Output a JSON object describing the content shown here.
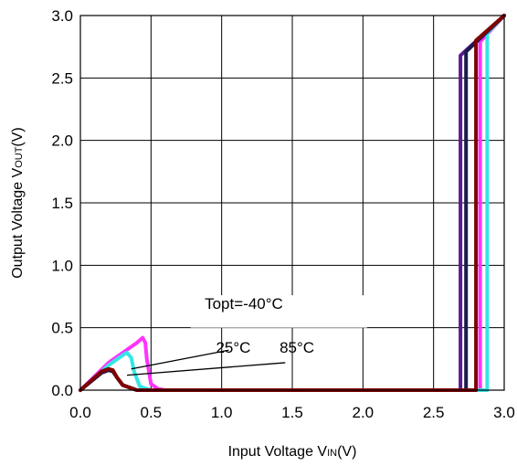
{
  "chart_data": {
    "type": "line",
    "title": "",
    "xlabel": {
      "main": "Input Voltage V",
      "sub": "IN",
      "unit": "(V)"
    },
    "ylabel": {
      "main": "Output Voltage V",
      "sub": "OUT",
      "unit": "(V)"
    },
    "xlim": [
      0.0,
      3.0
    ],
    "ylim": [
      0.0,
      3.0
    ],
    "xticks": [
      0.0,
      0.5,
      1.0,
      1.5,
      2.0,
      2.5,
      3.0
    ],
    "yticks": [
      0.0,
      0.5,
      1.0,
      1.5,
      2.0,
      2.5,
      3.0
    ],
    "xtick_labels": [
      "0.0",
      "0.5",
      "1.0",
      "1.5",
      "2.0",
      "2.5",
      "3.0"
    ],
    "ytick_labels": [
      "0.0",
      "0.5",
      "1.0",
      "1.5",
      "2.0",
      "2.5",
      "3.0"
    ],
    "grid": true,
    "legend": "none",
    "annotations": [
      {
        "text": "Topt=-40°C",
        "x": 0.88,
        "y": 0.65
      },
      {
        "text": "25°C",
        "x": 0.96,
        "y": 0.3
      },
      {
        "text": "85°C",
        "x": 1.41,
        "y": 0.3
      }
    ],
    "series": [
      {
        "color": "#ff33ff",
        "x": [
          0.0,
          0.2,
          0.4,
          0.44,
          0.46,
          0.47,
          0.5,
          0.55,
          0.6,
          2.83,
          2.83,
          3.0
        ],
        "y": [
          0.0,
          0.22,
          0.38,
          0.42,
          0.38,
          0.25,
          0.05,
          0.01,
          0.0,
          0.0,
          2.79,
          3.0
        ]
      },
      {
        "color": "#33e6e6",
        "x": [
          0.0,
          0.2,
          0.3,
          0.33,
          0.36,
          0.38,
          0.42,
          0.5,
          2.88,
          2.88,
          3.0
        ],
        "y": [
          0.0,
          0.2,
          0.28,
          0.3,
          0.26,
          0.15,
          0.03,
          0.0,
          0.0,
          2.86,
          3.0
        ]
      },
      {
        "color": "#5a1a8c",
        "x": [
          0.0,
          0.15,
          0.2,
          0.23,
          0.26,
          0.3,
          0.4,
          2.69,
          2.69,
          3.0
        ],
        "y": [
          0.0,
          0.14,
          0.16,
          0.15,
          0.1,
          0.04,
          0.0,
          0.0,
          2.68,
          3.0
        ]
      },
      {
        "color": "#1a1a4d",
        "x": [
          0.0,
          0.15,
          0.2,
          0.23,
          0.26,
          0.3,
          0.4,
          2.73,
          2.73,
          3.0
        ],
        "y": [
          0.0,
          0.14,
          0.16,
          0.15,
          0.1,
          0.04,
          0.0,
          0.0,
          2.71,
          3.0
        ]
      },
      {
        "color": "#800000",
        "x": [
          0.0,
          0.15,
          0.2,
          0.23,
          0.26,
          0.3,
          0.4,
          2.8,
          2.8,
          3.0
        ],
        "y": [
          0.0,
          0.15,
          0.17,
          0.16,
          0.1,
          0.04,
          0.0,
          0.0,
          2.8,
          3.0
        ]
      }
    ],
    "leaders": [
      {
        "from": [
          0.36,
          0.17
        ],
        "to": [
          1.05,
          0.32
        ]
      },
      {
        "from": [
          0.33,
          0.12
        ],
        "to": [
          1.45,
          0.22
        ]
      }
    ]
  }
}
